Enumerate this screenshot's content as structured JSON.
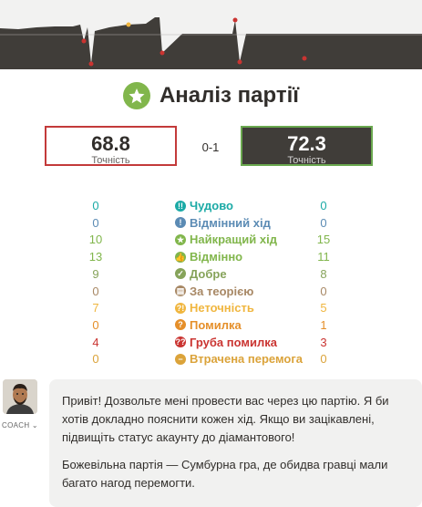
{
  "title": "Аналіз партії",
  "accuracy": {
    "white": {
      "value": "68.8",
      "label": "Точність"
    },
    "black": {
      "value": "72.3",
      "label": "Точність"
    },
    "score": "0-1"
  },
  "colors": {
    "white_border": "#c33a3a",
    "black_border": "#6aa84f",
    "black_bg": "#403d39",
    "accent": "#81b64c"
  },
  "moves": [
    {
      "name": "Чудово",
      "white": "0",
      "black": "0",
      "color": "#1baaa6",
      "icon": "double-exclamation-icon",
      "glyph": "!!"
    },
    {
      "name": "Відмінний хід",
      "white": "0",
      "black": "0",
      "color": "#5b8bb4",
      "icon": "exclamation-icon",
      "glyph": "!"
    },
    {
      "name": "Найкращий хід",
      "white": "10",
      "black": "15",
      "color": "#81b64c",
      "icon": "star-icon",
      "glyph": "★"
    },
    {
      "name": "Відмінно",
      "white": "13",
      "black": "11",
      "color": "#81b64c",
      "icon": "thumbs-up-icon",
      "glyph": "👍"
    },
    {
      "name": "Добре",
      "white": "9",
      "black": "8",
      "color": "#86a35a",
      "icon": "check-icon",
      "glyph": "✓"
    },
    {
      "name": "За теорією",
      "white": "0",
      "black": "0",
      "color": "#a88865",
      "icon": "book-icon",
      "glyph": "▤"
    },
    {
      "name": "Неточність",
      "white": "7",
      "black": "5",
      "color": "#f0b63f",
      "icon": "question-exclamation-icon",
      "glyph": "?!"
    },
    {
      "name": "Помилка",
      "white": "0",
      "black": "1",
      "color": "#e58f2a",
      "icon": "question-icon",
      "glyph": "?"
    },
    {
      "name": "Груба помилка",
      "white": "4",
      "black": "3",
      "color": "#ca3431",
      "icon": "double-question-icon",
      "glyph": "??"
    },
    {
      "name": "Втрачена перемога",
      "white": "0",
      "black": "0",
      "color": "#dba33a",
      "icon": "minus-icon",
      "glyph": "−"
    }
  ],
  "coach": {
    "label": "COACH",
    "message1": "Привіт! Дозвольте мені провести вас через цю партію. Я би хотів докладно пояснити кожен хід. Якщо ви зацікавлені, підвищіть статус акаунту до діамантового!",
    "message2": "Божевільна партія — Сумбурна гра, де обидва гравці мали багато нагод перемогти."
  }
}
